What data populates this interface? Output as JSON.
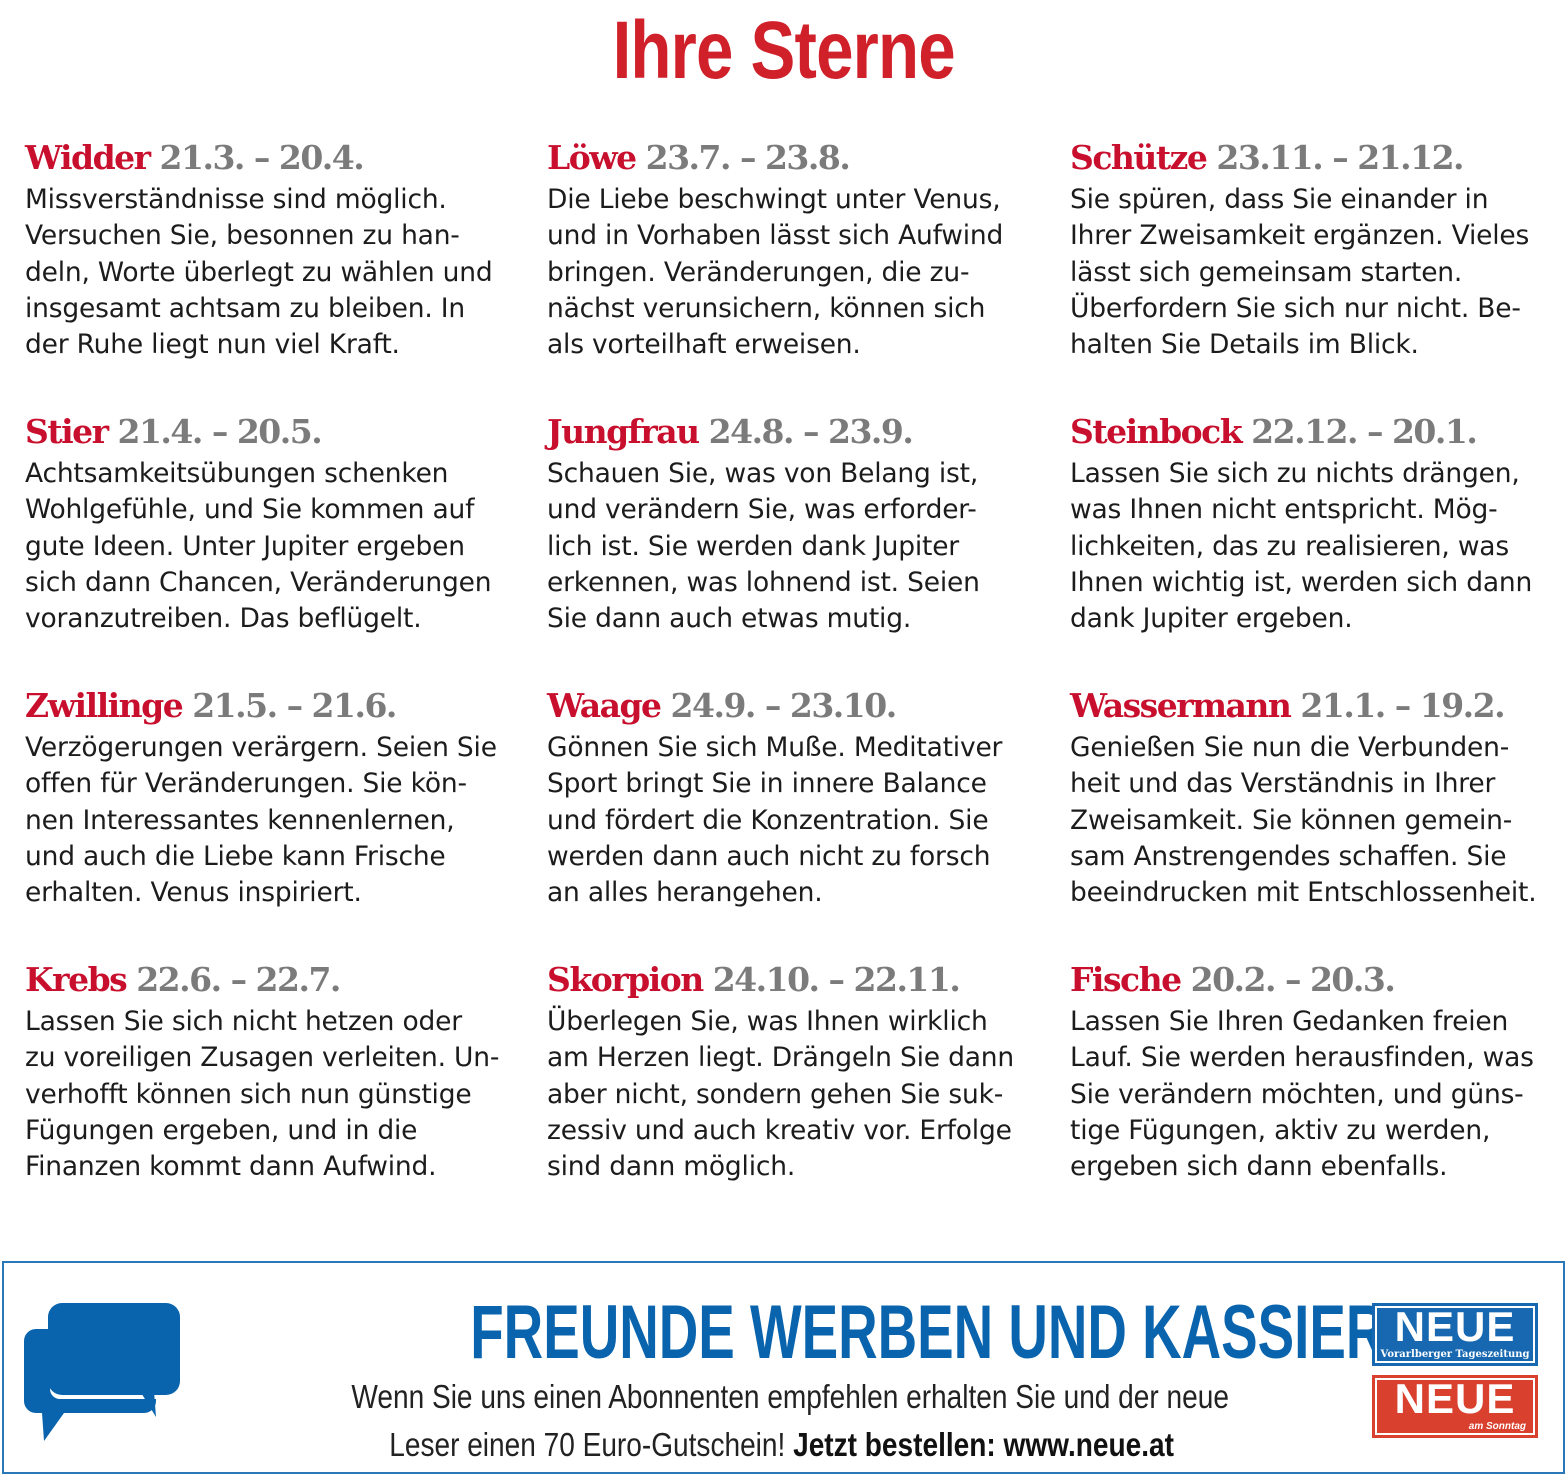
{
  "title": "Ihre Sterne",
  "colors": {
    "sign_name": "#c8102e",
    "dates": "#7b7b7b",
    "title": "#d0202a",
    "ad_blue": "#0a64ad",
    "logo_blue": "#1768b0",
    "logo_red": "#d9402d"
  },
  "signs": [
    {
      "name": "Widder",
      "dates": "21.3. – 20.4.",
      "text": "Missverständnisse sind möglich.\nVersuchen Sie, besonnen zu han-\ndeln, Worte überlegt zu wählen und\ninsgesamt achtsam zu bleiben. In\nder Ruhe liegt nun viel Kraft."
    },
    {
      "name": "Löwe",
      "dates": "23.7. – 23.8.",
      "text": "Die Liebe beschwingt unter Venus,\nund in Vorhaben lässt sich Aufwind\nbringen. Veränderungen, die zu-\nnächst verunsichern, können sich\nals vorteilhaft erweisen."
    },
    {
      "name": "Schütze",
      "dates": "23.11. – 21.12.",
      "text": "Sie spüren, dass Sie einander in\nIhrer Zweisamkeit ergänzen. Vieles\nlässt sich gemeinsam starten.\nÜberfordern Sie sich nur nicht. Be-\nhalten Sie Details im Blick."
    },
    {
      "name": "Stier",
      "dates": "21.4. – 20.5.",
      "text": "Achtsamkeitsübungen schenken\nWohlgefühle, und Sie kommen auf\ngute Ideen. Unter Jupiter ergeben\nsich dann Chancen, Veränderungen\nvoranzutreiben. Das beflügelt."
    },
    {
      "name": "Jungfrau",
      "dates": "24.8. – 23.9.",
      "text": "Schauen Sie, was von Belang ist,\nund verändern Sie, was erforder-\nlich ist. Sie werden dank Jupiter\nerkennen, was lohnend ist. Seien\nSie dann auch etwas mutig."
    },
    {
      "name": "Steinbock",
      "dates": "22.12. – 20.1.",
      "text": "Lassen Sie sich zu nichts drängen,\nwas Ihnen nicht entspricht. Mög-\nlichkeiten, das zu realisieren, was\nIhnen wichtig ist, werden sich dann\ndank Jupiter ergeben."
    },
    {
      "name": "Zwillinge",
      "dates": "21.5. – 21.6.",
      "text": "Verzögerungen verärgern. Seien Sie\noffen für Veränderungen. Sie kön-\nnen Interessantes kennenlernen,\nund auch die Liebe kann Frische\nerhalten. Venus inspiriert."
    },
    {
      "name": "Waage",
      "dates": "24.9. – 23.10.",
      "text": "Gönnen Sie sich Muße. Meditativer\nSport bringt Sie in innere Balance\nund fördert die Konzentration. Sie\nwerden dann auch nicht zu forsch\nan alles herangehen."
    },
    {
      "name": "Wassermann",
      "dates": "21.1. – 19.2.",
      "text": "Genießen Sie nun die Verbunden-\nheit und das Verständnis in Ihrer\nZweisamkeit. Sie können gemein-\nsam Anstrengendes schaffen. Sie\nbeeindrucken mit Entschlossenheit."
    },
    {
      "name": "Krebs",
      "dates": "22.6. – 22.7.",
      "text": "Lassen Sie sich nicht hetzen oder\nzu voreiligen Zusagen verleiten. Un-\nverhofft können sich nun günstige\nFügungen ergeben, und in die\nFinanzen kommt dann Aufwind."
    },
    {
      "name": "Skorpion",
      "dates": "24.10. – 22.11.",
      "text": "Überlegen Sie, was Ihnen wirklich\nam Herzen liegt. Drängeln Sie dann\naber nicht, sondern gehen Sie suk-\nzessiv und auch kreativ vor. Erfolge\nsind dann möglich."
    },
    {
      "name": "Fische",
      "dates": "20.2. – 20.3.",
      "text": "Lassen Sie Ihren Gedanken freien\nLauf. Sie werden herausfinden, was\nSie verändern möchten, und güns-\ntige Fügungen, aktiv zu werden,\nergeben sich dann ebenfalls."
    }
  ],
  "ad": {
    "icon": "speech-bubbles-icon",
    "headline": "FREUNDE WERBEN UND KASSIEREN!",
    "line1": "Wenn Sie uns einen Abonnenten empfehlen erhalten Sie und der neue",
    "line2": "Leser einen 70 Euro-Gutschein!",
    "cta": "Jetzt bestellen: www.neue.at",
    "logo1": {
      "big": "NEUE",
      "small": "Vorarlberger Tageszeitung"
    },
    "logo2": {
      "big": "NEUE",
      "small": "am Sonntag"
    }
  }
}
